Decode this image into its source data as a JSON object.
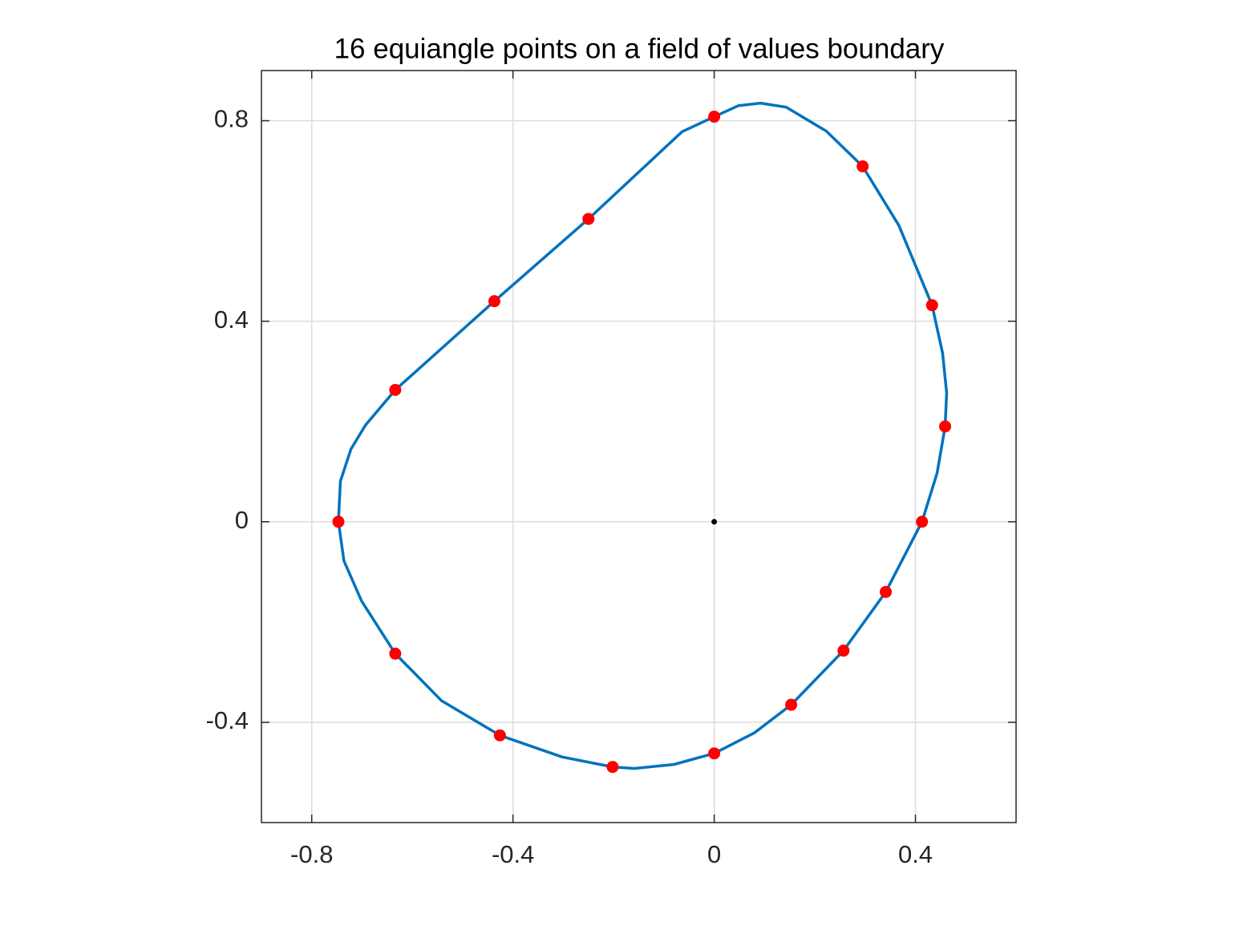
{
  "chart_data": {
    "type": "line",
    "title": "16 equiangle points on a field of values boundary",
    "xlim": [
      -0.9,
      0.6
    ],
    "ylim": [
      -0.6,
      0.9
    ],
    "xticks": [
      -0.8,
      -0.4,
      0,
      0.4
    ],
    "yticks": [
      -0.4,
      0,
      0.4,
      0.8
    ],
    "grid": true,
    "curve": {
      "color": "#0072bd",
      "x": [
        -0.747,
        -0.743,
        -0.722,
        -0.693,
        -0.634,
        -0.437,
        -0.25,
        -0.064,
        0,
        0.048,
        0.092,
        0.143,
        0.223,
        0.295,
        0.367,
        0.433,
        0.454,
        0.462,
        0.459,
        0.443,
        0.413,
        0.341,
        0.257,
        0.153,
        0.08,
        0,
        -0.08,
        -0.159,
        -0.202,
        -0.303,
        -0.426,
        -0.542,
        -0.634,
        -0.701,
        -0.736
      ],
      "y": [
        0,
        0.081,
        0.145,
        0.193,
        0.263,
        0.44,
        0.604,
        0.778,
        0.808,
        0.83,
        0.835,
        0.827,
        0.779,
        0.709,
        0.591,
        0.432,
        0.336,
        0.257,
        0.19,
        0.097,
        0,
        -0.14,
        -0.257,
        -0.365,
        -0.421,
        -0.462,
        -0.484,
        -0.492,
        -0.489,
        -0.469,
        -0.426,
        -0.357,
        -0.263,
        -0.158,
        -0.078
      ]
    },
    "points": {
      "color": "#ff0000",
      "x": [
        -0.747,
        -0.634,
        -0.437,
        -0.25,
        0,
        0.295,
        0.433,
        0.459,
        0.413,
        0.341,
        0.257,
        0.153,
        0,
        -0.202,
        -0.426,
        -0.634
      ],
      "y": [
        0,
        0.263,
        0.44,
        0.604,
        0.808,
        0.709,
        0.432,
        0.19,
        0,
        -0.14,
        -0.257,
        -0.365,
        -0.462,
        -0.489,
        -0.426,
        -0.263
      ]
    },
    "center": {
      "color": "#000000",
      "x": [
        0
      ],
      "y": [
        0
      ]
    }
  }
}
